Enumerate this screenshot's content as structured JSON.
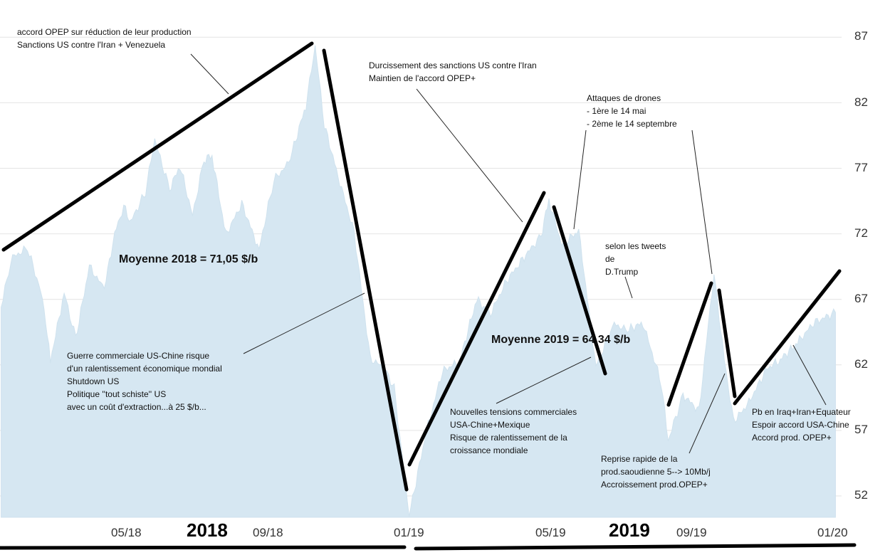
{
  "chart_data": {
    "type": "area",
    "ylim": [
      50,
      88
    ],
    "y_ticks": [
      "87",
      "82",
      "77",
      "72",
      "67",
      "62",
      "57",
      "52"
    ],
    "x_ticks": [
      "05/18",
      "09/18",
      "01/19",
      "05/19",
      "09/19",
      "01/20"
    ],
    "year_labels": [
      "2018",
      "2019"
    ],
    "fill_color": "#d6e7f2",
    "series": [
      {
        "values": [
          "2018-01-02:66.6",
          "2018-01-12:70.2",
          "2018-01-25:70.9",
          "2018-02-07:67.2",
          "2018-02-14:62.3",
          "2018-02-26:67.5",
          "2018-03-08:64.0",
          "2018-03-20:69.5",
          "2018-04-02:67.8",
          "2018-04-11:72.0",
          "2018-04-19:74.1",
          "2018-04-25:72.9",
          "2018-05-08:75.2",
          "2018-05-16:79.2",
          "2018-05-29:75.4",
          "2018-06-07:77.2",
          "2018-06-18:73.4",
          "2018-06-28:77.6",
          "2018-07-05:78.0",
          "2018-07-17:71.9",
          "2018-07-31:74.3",
          "2018-08-15:70.8",
          "2018-08-28:76.1",
          "2018-09-10:77.4",
          "2018-09-25:81.8",
          "2018-10-03:86.3",
          "2018-10-11:80.3",
          "2018-10-23:76.4",
          "2018-11-06:72.1",
          "2018-11-20:62.5",
          "2018-12-03:61.7",
          "2018-12-11:60.2",
          "2018-12-24:50.5",
          "2019-01-08:56.9",
          "2019-01-22:61.5",
          "2019-02-06:62.3",
          "2019-02-21:67.0",
          "2019-03-05:65.9",
          "2019-03-19:68.4",
          "2019-04-05:70.4",
          "2019-04-18:71.8",
          "2019-04-25:74.6",
          "2019-05-06:71.2",
          "2019-05-21:72.2",
          "2019-06-05:61.9",
          "2019-06-21:65.2",
          "2019-07-01:64.6",
          "2019-07-16:65.2",
          "2019-08-01:60.6",
          "2019-08-07:56.2",
          "2019-08-20:59.7",
          "2019-09-03:58.5",
          "2019-09-16:69.0",
          "2019-09-25:62.4",
          "2019-10-03:57.7",
          "2019-10-15:58.9",
          "2019-11-01:61.7",
          "2019-11-13:62.4",
          "2019-11-28:63.7",
          "2019-12-12:65.2",
          "2019-12-31:66.0"
        ]
      }
    ]
  },
  "annotations": {
    "top_left": [
      "accord OPEP sur réduction de leur production",
      "Sanctions US contre l'Iran + Venezuela"
    ],
    "mid_left": [
      "Guerre commerciale US-Chine risque",
      "d'un ralentissement économique mondial",
      "Shutdown US",
      "Politique ''tout schiste'' US",
      "avec un coût d'extraction...à 25 $/b..."
    ],
    "top_mid": [
      "Durcissement des sanctions US contre l'Iran",
      "Maintien de l'accord OPEP+"
    ],
    "drones": [
      "Attaques de drones",
      "- 1ère le 14 mai",
      "- 2ème le 14 septembre"
    ],
    "tweets": [
      "selon les tweets",
      "de",
      "D.Trump"
    ],
    "tensions": [
      "Nouvelles tensions commerciales",
      "USA-Chine+Mexique",
      "Risque de ralentissement de la",
      "croissance mondiale"
    ],
    "reprise": [
      "Reprise rapide de la",
      "prod.saoudienne 5--> 10Mb/j",
      "Accroissement prod.OPEP+"
    ],
    "right": [
      "Pb en Iraq+Iran+Equateur",
      "Espoir accord USA-Chine",
      "Accord prod. OPEP+"
    ],
    "avg_2018": "Moyenne 2018 = 71,05 $/b",
    "avg_2019": "Moyenne 2019 = 64,34 $/b"
  }
}
